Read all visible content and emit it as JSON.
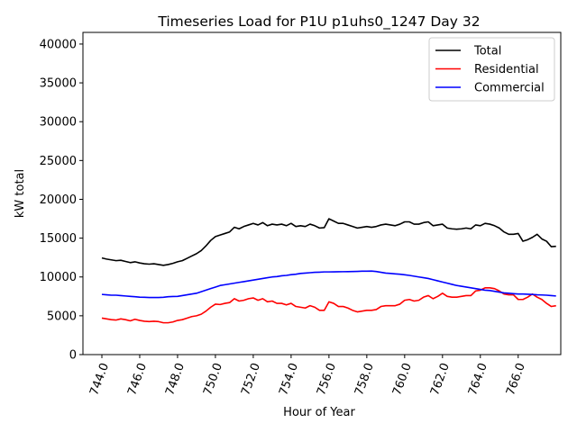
{
  "chart_data": {
    "type": "line",
    "title": "Timeseries Load for P1U p1uhs0_1247  Day 32",
    "xlabel": "Hour of Year",
    "ylabel": "kW total",
    "xlim": [
      743.0,
      768.25
    ],
    "ylim": [
      0,
      41500
    ],
    "xticks": [
      744,
      746,
      748,
      750,
      752,
      754,
      756,
      758,
      760,
      762,
      764,
      766
    ],
    "xtick_labels": [
      "744.0",
      "746.0",
      "748.0",
      "750.0",
      "752.0",
      "754.0",
      "756.0",
      "758.0",
      "760.0",
      "762.0",
      "764.0",
      "766.0"
    ],
    "yticks": [
      0,
      5000,
      10000,
      15000,
      20000,
      25000,
      30000,
      35000,
      40000
    ],
    "ytick_labels": [
      "0",
      "5000",
      "10000",
      "15000",
      "20000",
      "25000",
      "30000",
      "35000",
      "40000"
    ],
    "legend_position": "top-right",
    "x_start": 744.0,
    "x_step": 0.25,
    "series": [
      {
        "name": "Total",
        "color": "#000000",
        "values": [
          12450,
          12300,
          12200,
          12100,
          12150,
          12000,
          11850,
          11950,
          11800,
          11700,
          11650,
          11700,
          11600,
          11500,
          11600,
          11750,
          11950,
          12100,
          12400,
          12700,
          13000,
          13400,
          14000,
          14700,
          15200,
          15400,
          15600,
          15800,
          16400,
          16200,
          16500,
          16700,
          16900,
          16700,
          17000,
          16600,
          16800,
          16700,
          16800,
          16600,
          16900,
          16500,
          16600,
          16500,
          16800,
          16600,
          16300,
          16350,
          17500,
          17200,
          16900,
          16900,
          16700,
          16500,
          16300,
          16400,
          16500,
          16400,
          16500,
          16700,
          16800,
          16700,
          16600,
          16800,
          17100,
          17100,
          16800,
          16800,
          17000,
          17100,
          16600,
          16700,
          16800,
          16300,
          16200,
          16150,
          16200,
          16300,
          16200,
          16700,
          16600,
          16900,
          16800,
          16600,
          16300,
          15800,
          15500,
          15500,
          15600,
          14600,
          14800,
          15100,
          15500,
          14900,
          14600,
          13900,
          13950
        ]
      },
      {
        "name": "Residential",
        "color": "#ff0000",
        "values": [
          4700,
          4600,
          4500,
          4450,
          4600,
          4500,
          4350,
          4550,
          4400,
          4300,
          4250,
          4300,
          4250,
          4100,
          4100,
          4200,
          4400,
          4500,
          4700,
          4900,
          5000,
          5200,
          5600,
          6100,
          6500,
          6450,
          6600,
          6700,
          7200,
          6900,
          7000,
          7200,
          7300,
          7000,
          7200,
          6800,
          6900,
          6600,
          6600,
          6400,
          6600,
          6200,
          6100,
          6000,
          6300,
          6100,
          5700,
          5700,
          6800,
          6600,
          6200,
          6200,
          6000,
          5700,
          5500,
          5600,
          5700,
          5700,
          5800,
          6200,
          6300,
          6300,
          6300,
          6500,
          7000,
          7100,
          6900,
          7000,
          7400,
          7600,
          7200,
          7500,
          7900,
          7500,
          7400,
          7400,
          7500,
          7600,
          7600,
          8200,
          8300,
          8600,
          8600,
          8500,
          8200,
          7800,
          7700,
          7700,
          7100,
          7100,
          7400,
          7800,
          7400,
          7100,
          6600,
          6200,
          6300
        ]
      },
      {
        "name": "Commercial",
        "color": "#0000ff",
        "values": [
          7750,
          7700,
          7650,
          7650,
          7600,
          7550,
          7500,
          7450,
          7400,
          7380,
          7350,
          7350,
          7350,
          7380,
          7450,
          7480,
          7500,
          7600,
          7700,
          7800,
          7900,
          8100,
          8300,
          8500,
          8700,
          8900,
          9000,
          9100,
          9200,
          9300,
          9400,
          9500,
          9600,
          9700,
          9800,
          9900,
          10000,
          10050,
          10150,
          10200,
          10300,
          10350,
          10450,
          10500,
          10550,
          10600,
          10620,
          10650,
          10650,
          10660,
          10670,
          10680,
          10690,
          10700,
          10720,
          10740,
          10750,
          10760,
          10700,
          10600,
          10500,
          10450,
          10400,
          10350,
          10280,
          10200,
          10100,
          10000,
          9900,
          9800,
          9650,
          9500,
          9350,
          9200,
          9050,
          8900,
          8800,
          8700,
          8600,
          8500,
          8400,
          8300,
          8250,
          8150,
          8050,
          7950,
          7900,
          7850,
          7800,
          7800,
          7780,
          7750,
          7700,
          7680,
          7650,
          7600,
          7550
        ]
      }
    ]
  }
}
